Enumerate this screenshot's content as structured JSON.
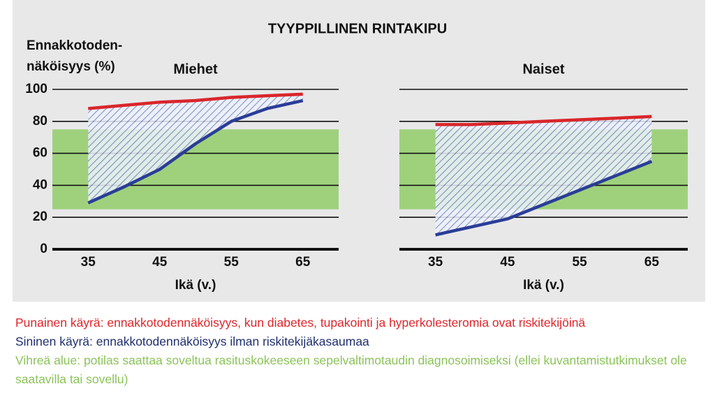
{
  "title": "TYYPPILLINEN RINTAKIPU",
  "ylabel": [
    "Ennakkotoden-",
    "näköisyys (%)"
  ],
  "notes": [
    {
      "text": "Punainen käyrä: ennakkotodennäköisyys, kun diabetes, tupakointi ja hyperkolesteromia ovat riskitekijöinä",
      "color": "#e0262b"
    },
    {
      "text": "Sininen käyrä: ennakkotodennäköisyys ilman riskitekijäkasaumaa",
      "color": "#1f2f6e"
    },
    {
      "text": "Vihreä alue: potilas saattaa soveltua rasituskokeeseen sepelvaltimotaudin diagnosoimiseksi (ellei kuvantamistutkimukset ole saatavilla tai sovellu)",
      "color": "#8cc35a"
    }
  ],
  "chart_data": [
    {
      "type": "line",
      "subtitle": "Miehet",
      "xlabel": "Ikä (v.)",
      "x": [
        35,
        40,
        45,
        50,
        55,
        60,
        65
      ],
      "series": [
        {
          "color": "#d9262b",
          "values": [
            88,
            90,
            92,
            93,
            95,
            96,
            97
          ]
        },
        {
          "color": "#2a3d97",
          "values": [
            29,
            39,
            50,
            66,
            80,
            88,
            93
          ]
        }
      ],
      "band": [
        25,
        75
      ],
      "band_color": "#9fd17d",
      "xlim": [
        30,
        70
      ],
      "xticks": [
        35,
        45,
        55,
        65
      ],
      "ylim": [
        0,
        100
      ],
      "yticks": [
        0,
        20,
        40,
        60,
        80,
        100
      ]
    },
    {
      "type": "line",
      "subtitle": "Naiset",
      "xlabel": "Ikä (v.)",
      "x": [
        35,
        40,
        45,
        50,
        55,
        60,
        65
      ],
      "series": [
        {
          "color": "#d9262b",
          "values": [
            78,
            78,
            79,
            80,
            81,
            82,
            83
          ]
        },
        {
          "color": "#2a3d97",
          "values": [
            9,
            14,
            19,
            28,
            37,
            46,
            55
          ]
        }
      ],
      "band": [
        25,
        75
      ],
      "band_color": "#9fd17d",
      "xlim": [
        30,
        70
      ],
      "xticks": [
        35,
        45,
        55,
        65
      ],
      "ylim": [
        0,
        100
      ],
      "yticks": [
        0,
        20,
        40,
        60,
        80,
        100
      ]
    }
  ]
}
